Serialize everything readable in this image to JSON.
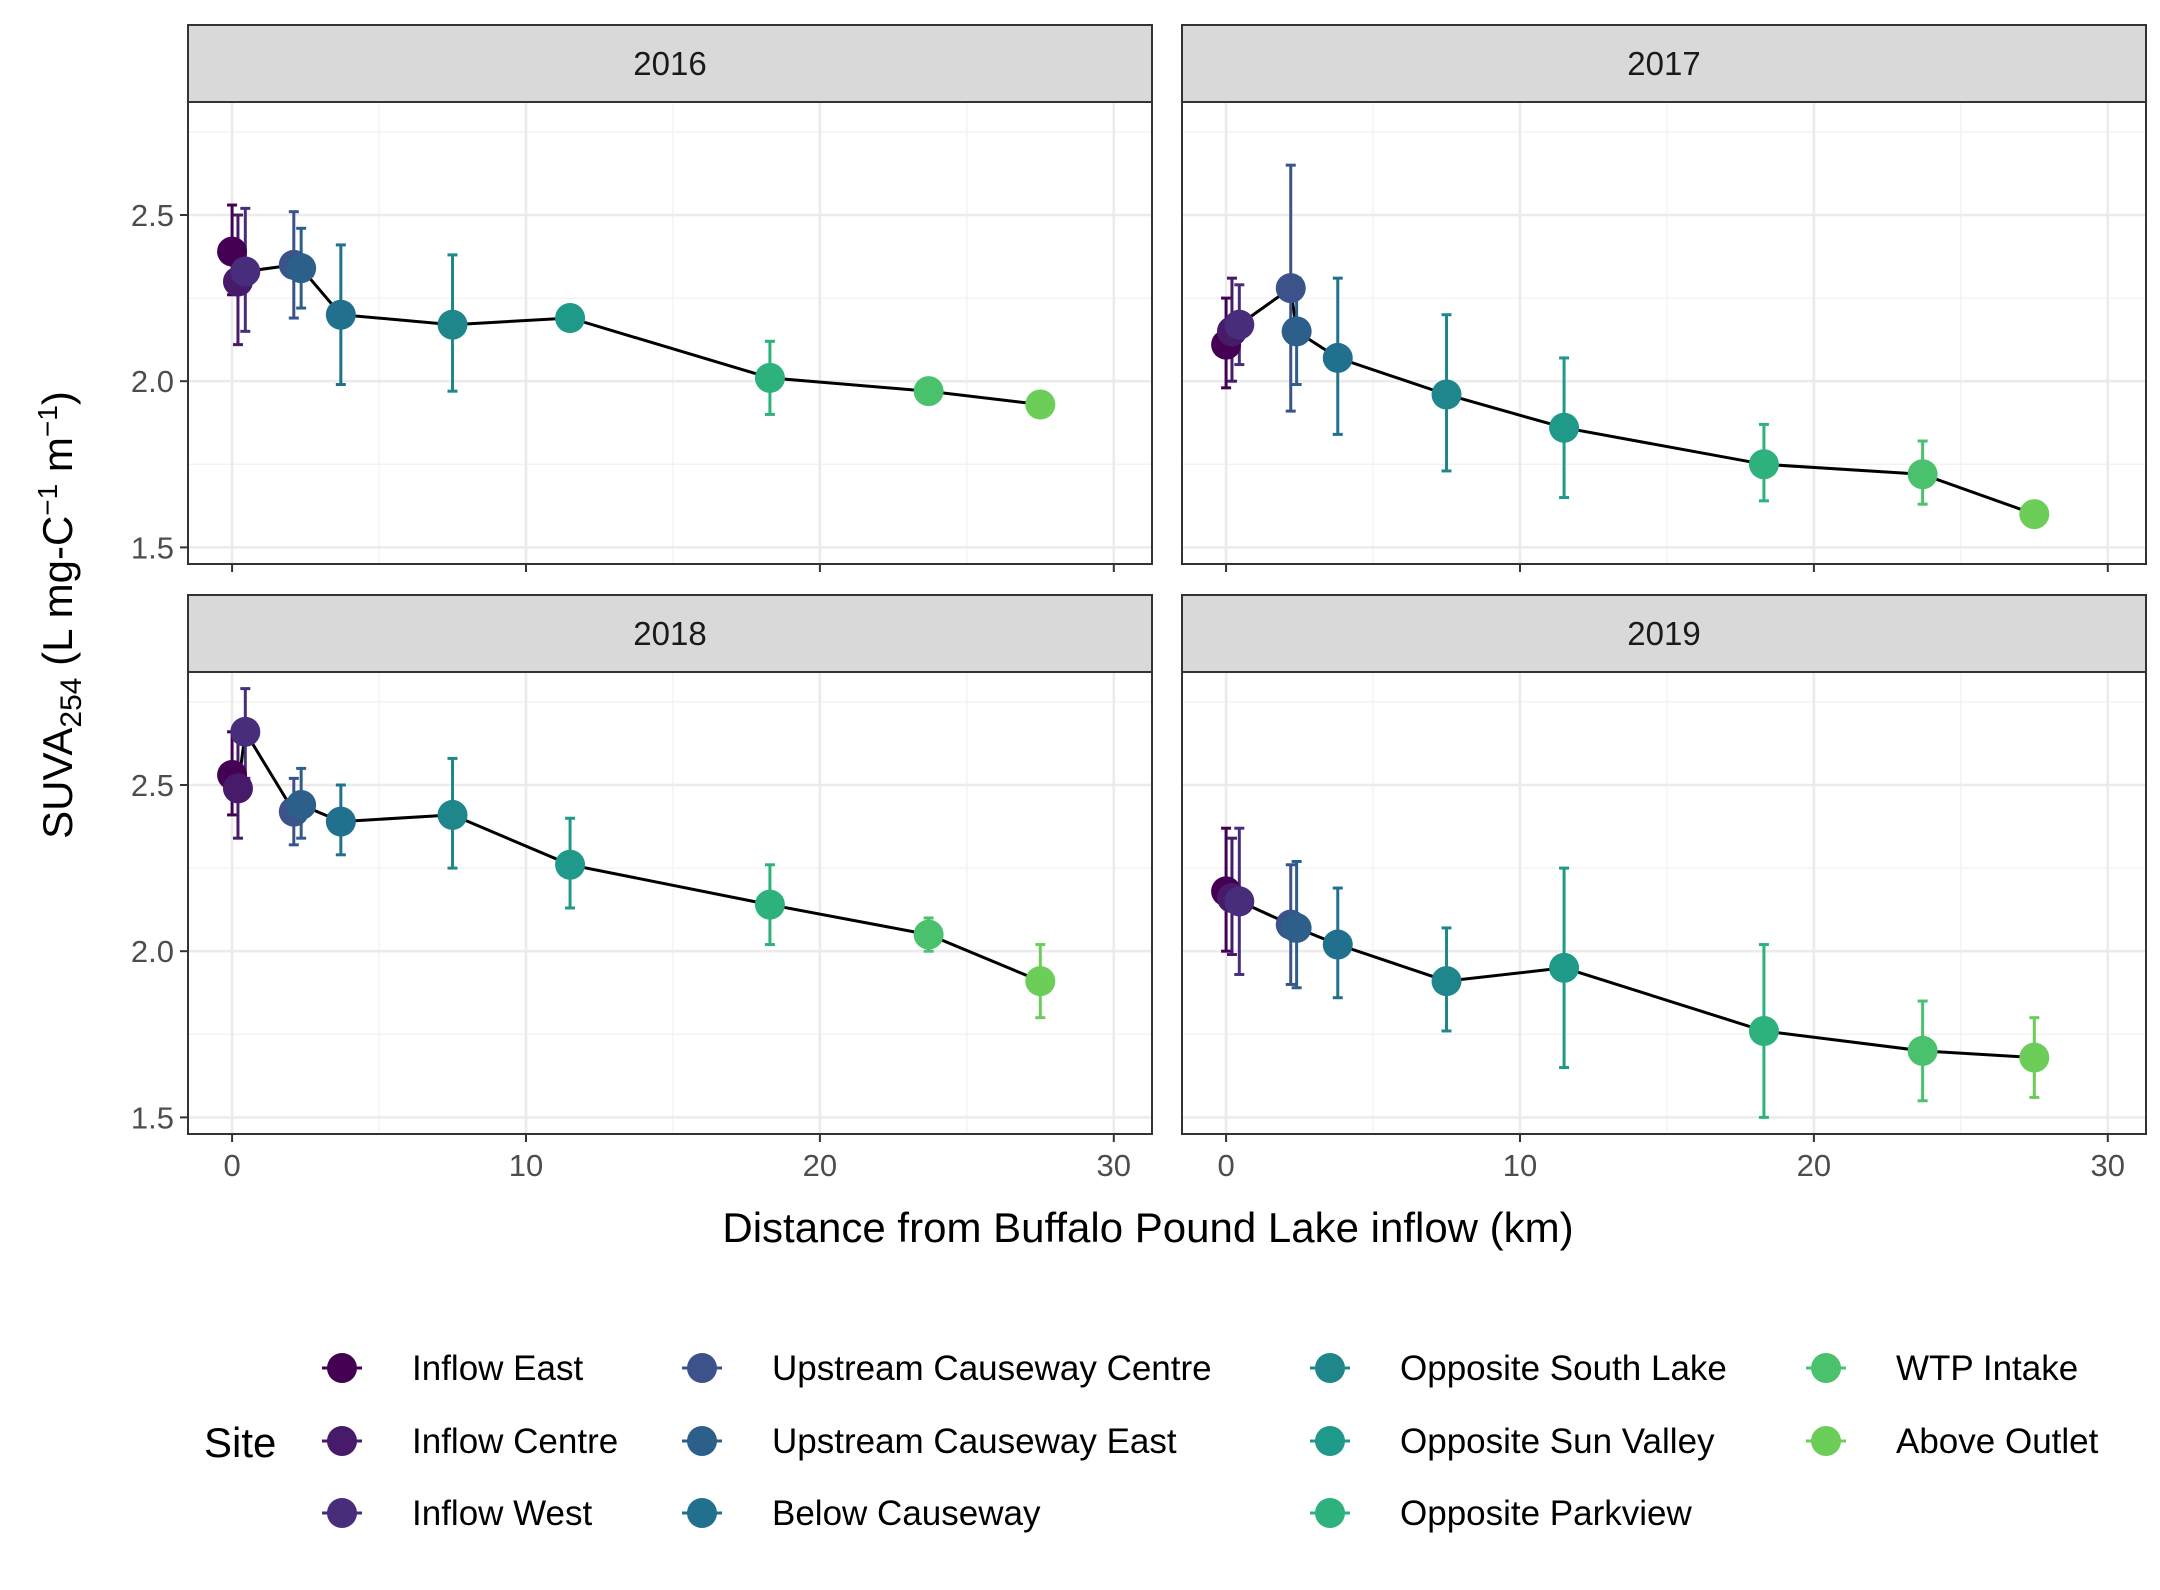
{
  "chart_data": {
    "type": "scatter",
    "xlabel": "Distance from Buffalo Pound Lake inflow (km)",
    "ylabel": {
      "prefix": "SUVA",
      "sub": "254",
      "units_a": " (L mg-C",
      "sup_a": "−1",
      "units_b": " m",
      "sup_b": "−1",
      "units_c": ")"
    },
    "xlim": [
      -1.5,
      31.3
    ],
    "ylim": [
      1.45,
      2.84
    ],
    "x_ticks": [
      0,
      10,
      20,
      30
    ],
    "y_ticks": [
      1.5,
      2.0,
      2.5
    ],
    "y_tick_labels": [
      "1.5",
      "2.0",
      "2.5"
    ],
    "x_tick_labels": [
      "0",
      "10",
      "20",
      "30"
    ],
    "grid": true,
    "legend": {
      "title": "Site",
      "position": "bottom",
      "entries": [
        {
          "name": "Inflow East",
          "color": "#440154"
        },
        {
          "name": "Inflow Centre",
          "color": "#471A6A"
        },
        {
          "name": "Inflow West",
          "color": "#472D7B"
        },
        {
          "name": "Upstream Causeway Centre",
          "color": "#3B528B"
        },
        {
          "name": "Upstream Causeway East",
          "color": "#2C5F8A"
        },
        {
          "name": "Below Causeway",
          "color": "#21718E"
        },
        {
          "name": "Opposite South Lake",
          "color": "#1F878C"
        },
        {
          "name": "Opposite Sun Valley",
          "color": "#1F9A8A"
        },
        {
          "name": "Opposite Parkview",
          "color": "#2DB27D"
        },
        {
          "name": "WTP Intake",
          "color": "#4AC16D"
        },
        {
          "name": "Above Outlet",
          "color": "#6CCE59"
        }
      ]
    },
    "panels": [
      {
        "title": "2016",
        "points": [
          {
            "site": "Inflow East",
            "x": 0.0,
            "y": 2.39,
            "lo": 2.26,
            "hi": 2.53
          },
          {
            "site": "Inflow Centre",
            "x": 0.2,
            "y": 2.3,
            "lo": 2.11,
            "hi": 2.5
          },
          {
            "site": "Inflow West",
            "x": 0.45,
            "y": 2.33,
            "lo": 2.15,
            "hi": 2.52
          },
          {
            "site": "Upstream Causeway Centre",
            "x": 2.1,
            "y": 2.35,
            "lo": 2.19,
            "hi": 2.51
          },
          {
            "site": "Upstream Causeway East",
            "x": 2.35,
            "y": 2.34,
            "lo": 2.22,
            "hi": 2.46
          },
          {
            "site": "Below Causeway",
            "x": 3.7,
            "y": 2.2,
            "lo": 1.99,
            "hi": 2.41
          },
          {
            "site": "Opposite South Lake",
            "x": 7.5,
            "y": 2.17,
            "lo": 1.97,
            "hi": 2.38
          },
          {
            "site": "Opposite Sun Valley",
            "x": 11.5,
            "y": 2.19,
            "lo": 2.19,
            "hi": 2.19
          },
          {
            "site": "Opposite Parkview",
            "x": 18.3,
            "y": 2.01,
            "lo": 1.9,
            "hi": 2.12
          },
          {
            "site": "WTP Intake",
            "x": 23.7,
            "y": 1.97,
            "lo": 1.95,
            "hi": 1.99
          },
          {
            "site": "Above Outlet",
            "x": 27.5,
            "y": 1.93,
            "lo": 1.93,
            "hi": 1.93
          }
        ]
      },
      {
        "title": "2017",
        "points": [
          {
            "site": "Inflow East",
            "x": 0.0,
            "y": 2.11,
            "lo": 1.98,
            "hi": 2.25
          },
          {
            "site": "Inflow Centre",
            "x": 0.2,
            "y": 2.15,
            "lo": 2.0,
            "hi": 2.31
          },
          {
            "site": "Inflow West",
            "x": 0.45,
            "y": 2.17,
            "lo": 2.05,
            "hi": 2.29
          },
          {
            "site": "Upstream Causeway Centre",
            "x": 2.2,
            "y": 2.28,
            "lo": 1.91,
            "hi": 2.65
          },
          {
            "site": "Upstream Causeway East",
            "x": 2.4,
            "y": 2.15,
            "lo": 1.99,
            "hi": 2.31
          },
          {
            "site": "Below Causeway",
            "x": 3.8,
            "y": 2.07,
            "lo": 1.84,
            "hi": 2.31
          },
          {
            "site": "Opposite South Lake",
            "x": 7.5,
            "y": 1.96,
            "lo": 1.73,
            "hi": 2.2
          },
          {
            "site": "Opposite Sun Valley",
            "x": 11.5,
            "y": 1.86,
            "lo": 1.65,
            "hi": 2.07
          },
          {
            "site": "Opposite Parkview",
            "x": 18.3,
            "y": 1.75,
            "lo": 1.64,
            "hi": 1.87
          },
          {
            "site": "WTP Intake",
            "x": 23.7,
            "y": 1.72,
            "lo": 1.63,
            "hi": 1.82
          },
          {
            "site": "Above Outlet",
            "x": 27.5,
            "y": 1.6,
            "lo": 1.6,
            "hi": 1.6
          }
        ]
      },
      {
        "title": "2018",
        "points": [
          {
            "site": "Inflow East",
            "x": 0.0,
            "y": 2.53,
            "lo": 2.41,
            "hi": 2.66
          },
          {
            "site": "Inflow Centre",
            "x": 0.2,
            "y": 2.49,
            "lo": 2.34,
            "hi": 2.64
          },
          {
            "site": "Inflow West",
            "x": 0.45,
            "y": 2.66,
            "lo": 2.52,
            "hi": 2.79
          },
          {
            "site": "Upstream Causeway Centre",
            "x": 2.1,
            "y": 2.42,
            "lo": 2.32,
            "hi": 2.52
          },
          {
            "site": "Upstream Causeway East",
            "x": 2.35,
            "y": 2.44,
            "lo": 2.34,
            "hi": 2.55
          },
          {
            "site": "Below Causeway",
            "x": 3.7,
            "y": 2.39,
            "lo": 2.29,
            "hi": 2.5
          },
          {
            "site": "Opposite South Lake",
            "x": 7.5,
            "y": 2.41,
            "lo": 2.25,
            "hi": 2.58
          },
          {
            "site": "Opposite Sun Valley",
            "x": 11.5,
            "y": 2.26,
            "lo": 2.13,
            "hi": 2.4
          },
          {
            "site": "Opposite Parkview",
            "x": 18.3,
            "y": 2.14,
            "lo": 2.02,
            "hi": 2.26
          },
          {
            "site": "WTP Intake",
            "x": 23.7,
            "y": 2.05,
            "lo": 2.0,
            "hi": 2.1
          },
          {
            "site": "Above Outlet",
            "x": 27.5,
            "y": 1.91,
            "lo": 1.8,
            "hi": 2.02
          }
        ]
      },
      {
        "title": "2019",
        "points": [
          {
            "site": "Inflow East",
            "x": 0.0,
            "y": 2.18,
            "lo": 2.0,
            "hi": 2.37
          },
          {
            "site": "Inflow Centre",
            "x": 0.2,
            "y": 2.16,
            "lo": 1.99,
            "hi": 2.34
          },
          {
            "site": "Inflow West",
            "x": 0.45,
            "y": 2.15,
            "lo": 1.93,
            "hi": 2.37
          },
          {
            "site": "Upstream Causeway Centre",
            "x": 2.2,
            "y": 2.08,
            "lo": 1.9,
            "hi": 2.26
          },
          {
            "site": "Upstream Causeway East",
            "x": 2.4,
            "y": 2.07,
            "lo": 1.89,
            "hi": 2.27
          },
          {
            "site": "Below Causeway",
            "x": 3.8,
            "y": 2.02,
            "lo": 1.86,
            "hi": 2.19
          },
          {
            "site": "Opposite South Lake",
            "x": 7.5,
            "y": 1.91,
            "lo": 1.76,
            "hi": 2.07
          },
          {
            "site": "Opposite Sun Valley",
            "x": 11.5,
            "y": 1.95,
            "lo": 1.65,
            "hi": 2.25
          },
          {
            "site": "Opposite Parkview",
            "x": 18.3,
            "y": 1.76,
            "lo": 1.5,
            "hi": 2.02
          },
          {
            "site": "WTP Intake",
            "x": 23.7,
            "y": 1.7,
            "lo": 1.55,
            "hi": 1.85
          },
          {
            "site": "Above Outlet",
            "x": 27.5,
            "y": 1.68,
            "lo": 1.56,
            "hi": 1.8
          }
        ]
      }
    ]
  }
}
